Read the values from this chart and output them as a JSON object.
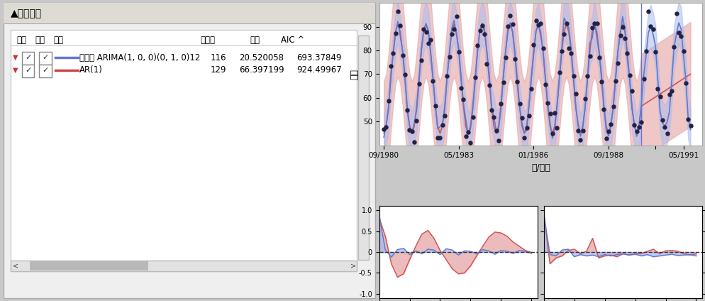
{
  "title": "▲模型比较",
  "table_headers": [
    "报表",
    "图形",
    "模型",
    "自由度",
    "方差",
    "AIC ^"
  ],
  "rows": [
    {
      "line_color": "#6677cc",
      "model": "季节性 ARIMA(1, 0, 0)(0, 1, 0)12",
      "df": "116",
      "variance": "20.520058",
      "aic": "693.37849"
    },
    {
      "line_color": "#cc4444",
      "model": "AR(1)",
      "df": "129",
      "variance": "66.397199",
      "aic": "924.49967"
    }
  ],
  "bg_color": "#f0f0f0",
  "blue_color": "#6677cc",
  "red_color": "#cc5555",
  "blue_fill": "#aabbee",
  "red_fill": "#e8aaaa"
}
